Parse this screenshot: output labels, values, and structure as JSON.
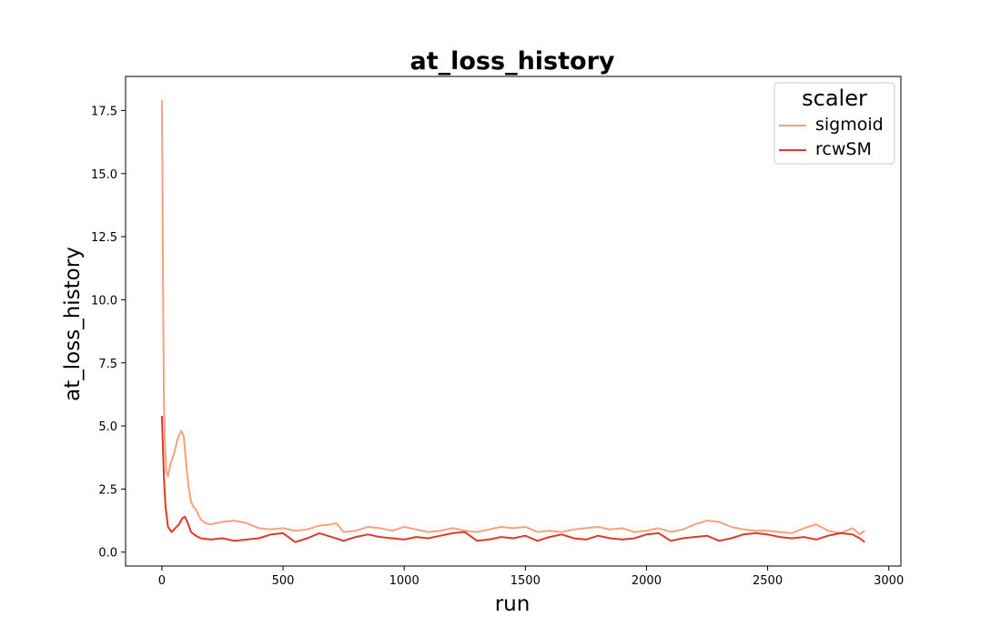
{
  "chart_data": {
    "type": "line",
    "title": "at_loss_history",
    "xlabel": "run",
    "ylabel": "at_loss_history",
    "xlim": [
      -150,
      3050
    ],
    "ylim": [
      -0.55,
      18.85
    ],
    "xticks": [
      0,
      500,
      1000,
      1500,
      2000,
      2500,
      3000
    ],
    "xtick_labels": [
      "0",
      "500",
      "1000",
      "1500",
      "2000",
      "2500",
      "3000"
    ],
    "yticks": [
      0.0,
      2.5,
      5.0,
      7.5,
      10.0,
      12.5,
      15.0,
      17.5
    ],
    "ytick_labels": [
      "0.0",
      "2.5",
      "5.0",
      "7.5",
      "10.0",
      "12.5",
      "15.0",
      "17.5"
    ],
    "grid": false,
    "legend": {
      "title": "scaler",
      "position": "top-right"
    },
    "series": [
      {
        "name": "sigmoid",
        "color": "#f9a07f",
        "x": [
          0,
          2,
          5,
          8,
          12,
          18,
          25,
          35,
          50,
          65,
          80,
          90,
          100,
          110,
          120,
          130,
          140,
          160,
          180,
          200,
          250,
          300,
          350,
          400,
          450,
          500,
          550,
          600,
          650,
          700,
          720,
          750,
          800,
          850,
          900,
          950,
          1000,
          1050,
          1100,
          1150,
          1200,
          1250,
          1300,
          1350,
          1400,
          1450,
          1500,
          1550,
          1600,
          1650,
          1700,
          1750,
          1800,
          1850,
          1900,
          1950,
          2000,
          2050,
          2100,
          2150,
          2200,
          2250,
          2300,
          2350,
          2400,
          2450,
          2500,
          2550,
          2600,
          2650,
          2700,
          2750,
          2800,
          2850,
          2880,
          2900
        ],
        "y": [
          17.9,
          15.0,
          10.0,
          6.0,
          4.5,
          3.2,
          3.0,
          3.5,
          3.9,
          4.5,
          4.8,
          4.6,
          3.5,
          2.6,
          2.0,
          1.8,
          1.7,
          1.3,
          1.15,
          1.1,
          1.2,
          1.25,
          1.15,
          0.95,
          0.9,
          0.95,
          0.85,
          0.9,
          1.05,
          1.1,
          1.15,
          0.8,
          0.85,
          1.0,
          0.95,
          0.85,
          1.0,
          0.9,
          0.8,
          0.85,
          0.95,
          0.85,
          0.8,
          0.9,
          1.0,
          0.95,
          1.0,
          0.8,
          0.85,
          0.8,
          0.9,
          0.95,
          1.0,
          0.9,
          0.95,
          0.8,
          0.85,
          0.95,
          0.8,
          0.9,
          1.1,
          1.25,
          1.2,
          1.0,
          0.9,
          0.85,
          0.85,
          0.8,
          0.75,
          0.95,
          1.1,
          0.85,
          0.75,
          0.95,
          0.7,
          0.85
        ]
      },
      {
        "name": "rcwSM",
        "color": "#de3a2c",
        "x": [
          0,
          3,
          8,
          15,
          25,
          40,
          55,
          70,
          85,
          95,
          105,
          120,
          140,
          160,
          200,
          250,
          300,
          350,
          400,
          450,
          500,
          550,
          600,
          650,
          700,
          750,
          800,
          850,
          900,
          950,
          1000,
          1050,
          1100,
          1150,
          1200,
          1250,
          1300,
          1350,
          1400,
          1450,
          1500,
          1550,
          1600,
          1650,
          1700,
          1750,
          1800,
          1850,
          1900,
          1950,
          2000,
          2050,
          2100,
          2150,
          2200,
          2250,
          2300,
          2350,
          2400,
          2450,
          2500,
          2550,
          2600,
          2650,
          2700,
          2750,
          2800,
          2850,
          2880,
          2900
        ],
        "y": [
          5.4,
          4.5,
          3.0,
          1.8,
          1.0,
          0.8,
          0.95,
          1.1,
          1.35,
          1.4,
          1.2,
          0.8,
          0.65,
          0.55,
          0.5,
          0.55,
          0.45,
          0.5,
          0.55,
          0.7,
          0.75,
          0.4,
          0.55,
          0.75,
          0.6,
          0.45,
          0.6,
          0.7,
          0.6,
          0.55,
          0.5,
          0.6,
          0.55,
          0.65,
          0.75,
          0.8,
          0.45,
          0.5,
          0.6,
          0.55,
          0.65,
          0.45,
          0.6,
          0.7,
          0.55,
          0.5,
          0.65,
          0.55,
          0.5,
          0.55,
          0.7,
          0.75,
          0.45,
          0.55,
          0.6,
          0.65,
          0.45,
          0.55,
          0.7,
          0.75,
          0.7,
          0.6,
          0.55,
          0.6,
          0.5,
          0.65,
          0.75,
          0.7,
          0.55,
          0.4
        ]
      }
    ]
  }
}
